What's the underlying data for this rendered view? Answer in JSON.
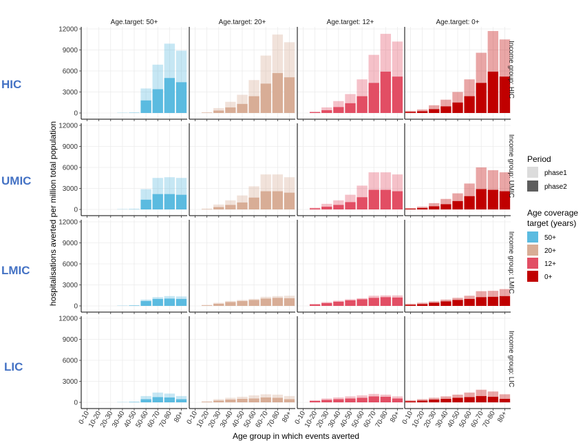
{
  "chart_data": {
    "type": "bar",
    "ylabel": "hospitalisations averted per million total population",
    "xlabel": "Age group in which events averted",
    "categories": [
      "0-10",
      "10-20",
      "20-30",
      "30-40",
      "40-50",
      "50-60",
      "60-70",
      "70-80",
      "80+"
    ],
    "ylim": [
      0,
      12000
    ],
    "yticks": [
      0,
      3000,
      6000,
      9000,
      12000
    ],
    "age_targets": [
      "Age.target: 50+",
      "Age.target: 20+",
      "Age.target: 12+",
      "Age.target: 0+"
    ],
    "income_groups": [
      "Income group: HIC",
      "Income group: UMIC",
      "Income group: LMIC",
      "Income group: LIC"
    ],
    "side_labels": [
      "HIC",
      "UMIC",
      "LMIC",
      "LIC"
    ],
    "colors": {
      "50+": "#5bbbe0",
      "20+": "#d8ad96",
      "12+": "#e24e64",
      "0+": "#c00000"
    },
    "legend": {
      "period_title": "Period",
      "period_items": [
        "phase1",
        "phase2"
      ],
      "age_title_line1": "Age coverage",
      "age_title_line2": "target (years)",
      "age_items": [
        "50+",
        "20+",
        "12+",
        "0+"
      ]
    },
    "panels": {
      "HIC": {
        "50+": {
          "phase2": [
            0,
            0,
            0,
            20,
            40,
            1800,
            3400,
            5000,
            4400
          ],
          "total": [
            0,
            0,
            0,
            30,
            60,
            3500,
            6900,
            9900,
            8900
          ]
        },
        "20+": {
          "phase2": [
            0,
            50,
            350,
            800,
            1300,
            2400,
            4200,
            5700,
            5100
          ],
          "total": [
            0,
            100,
            700,
            1600,
            2600,
            4700,
            8200,
            11200,
            10100
          ]
        },
        "12+": {
          "phase2": [
            0,
            120,
            400,
            850,
            1400,
            2400,
            4300,
            5900,
            5200
          ],
          "total": [
            0,
            200,
            800,
            1700,
            2700,
            4800,
            8300,
            11300,
            10200
          ]
        },
        "0+": {
          "phase2": [
            150,
            250,
            550,
            950,
            1500,
            2400,
            4300,
            5900,
            5200
          ],
          "total": [
            300,
            500,
            1100,
            1900,
            3000,
            4800,
            8600,
            11700,
            10500
          ]
        }
      },
      "UMIC": {
        "50+": {
          "phase2": [
            0,
            0,
            0,
            20,
            40,
            1400,
            2200,
            2200,
            2100
          ],
          "total": [
            0,
            0,
            0,
            30,
            60,
            2900,
            4500,
            4600,
            4500
          ]
        },
        "20+": {
          "phase2": [
            0,
            50,
            350,
            650,
            1000,
            1700,
            2600,
            2600,
            2400
          ],
          "total": [
            0,
            100,
            700,
            1300,
            2000,
            3300,
            5000,
            5000,
            4600
          ]
        },
        "12+": {
          "phase2": [
            0,
            150,
            400,
            650,
            1050,
            1750,
            2800,
            2800,
            2600
          ],
          "total": [
            0,
            250,
            800,
            1300,
            2100,
            3400,
            5300,
            5300,
            5000
          ]
        },
        "0+": {
          "phase2": [
            100,
            200,
            450,
            750,
            1200,
            1900,
            2900,
            2800,
            2600
          ],
          "total": [
            200,
            400,
            900,
            1500,
            2300,
            3700,
            6000,
            5600,
            5300
          ]
        }
      },
      "LMIC": {
        "50+": {
          "phase2": [
            0,
            0,
            0,
            20,
            50,
            700,
            1000,
            1050,
            1000
          ],
          "total": [
            0,
            0,
            0,
            40,
            100,
            900,
            1250,
            1400,
            1350
          ]
        },
        "20+": {
          "phase2": [
            0,
            80,
            300,
            550,
            700,
            850,
            1050,
            1150,
            1100
          ],
          "total": [
            0,
            150,
            450,
            700,
            850,
            1000,
            1300,
            1400,
            1450
          ]
        },
        "12+": {
          "phase2": [
            0,
            200,
            400,
            600,
            800,
            950,
            1150,
            1250,
            1200
          ],
          "total": [
            0,
            300,
            550,
            750,
            950,
            1100,
            1450,
            1500,
            1500
          ]
        },
        "0+": {
          "phase2": [
            150,
            250,
            450,
            650,
            850,
            1000,
            1250,
            1300,
            1400
          ],
          "total": [
            300,
            450,
            650,
            900,
            1150,
            1450,
            2100,
            2150,
            2400
          ]
        }
      },
      "LIC": {
        "50+": {
          "phase2": [
            0,
            0,
            0,
            20,
            50,
            450,
            750,
            700,
            450
          ],
          "total": [
            0,
            0,
            0,
            30,
            80,
            900,
            1400,
            1250,
            900
          ]
        },
        "20+": {
          "phase2": [
            0,
            80,
            250,
            400,
            500,
            550,
            700,
            650,
            450
          ],
          "total": [
            0,
            150,
            450,
            650,
            800,
            1000,
            1150,
            1100,
            900
          ]
        },
        "12+": {
          "phase2": [
            0,
            200,
            350,
            450,
            550,
            650,
            850,
            800,
            550
          ],
          "total": [
            0,
            300,
            550,
            700,
            850,
            1000,
            1200,
            1100,
            850
          ]
        },
        "0+": {
          "phase2": [
            150,
            250,
            400,
            500,
            650,
            750,
            900,
            800,
            500
          ],
          "total": [
            300,
            450,
            650,
            850,
            1100,
            1400,
            1800,
            1550,
            1150
          ]
        }
      }
    }
  }
}
